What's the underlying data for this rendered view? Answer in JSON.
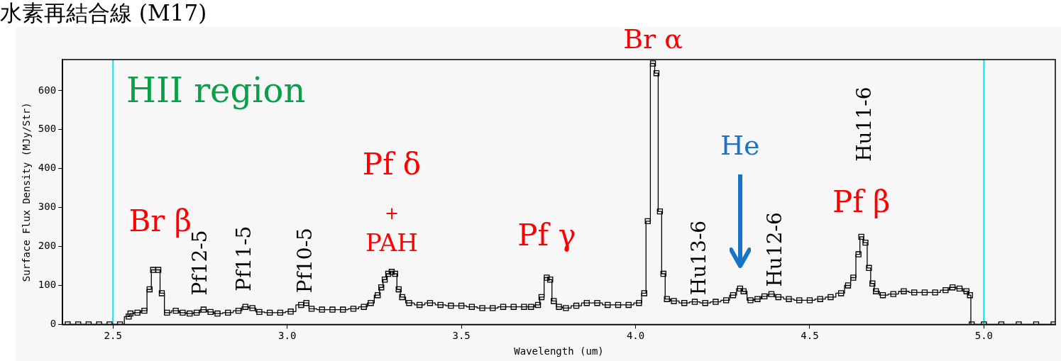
{
  "chart_data": {
    "type": "step",
    "title": "水素再結合線 (M17)",
    "xlabel": "Wavelength (um)",
    "ylabel": "Surface Flux Density (MJy/Str)",
    "xlim": [
      2.355,
      5.205
    ],
    "xticks": [
      2.5,
      {
        "value": 3,
        "label": "3.0"
      },
      3.5,
      {
        "value": 4,
        "label": "4.0"
      },
      4.5,
      {
        "value": 5,
        "label": "5.0"
      }
    ],
    "ylim": [
      0,
      680
    ],
    "yticks": [
      0,
      100,
      200,
      300,
      400,
      500,
      600
    ],
    "grid": false,
    "legend": false,
    "marker": "square",
    "line_style": "solid",
    "ref_lines": [
      {
        "axis": "x",
        "value": 2.5,
        "color": "#00e5ee"
      },
      {
        "axis": "x",
        "value": 5.0,
        "color": "#00e5ee"
      }
    ],
    "annotations": [
      "HII region",
      {
        "text": "Br β",
        "x": 2.615,
        "y": 140
      },
      {
        "text": "Pf12-5",
        "x": 2.76,
        "y": 38
      },
      {
        "text": "Pf11-5",
        "x": 2.88,
        "y": 45
      },
      {
        "text": "Pf10-5",
        "x": 3.055,
        "y": 55
      },
      "Pf δ",
      {
        "text": "+",
        "x": 3.3,
        "y": 135
      },
      {
        "text": "PAH",
        "x": 3.3,
        "y": 135
      },
      {
        "text": "Pf γ",
        "x": 3.745,
        "y": 120
      },
      {
        "text": "Br α",
        "x": 4.05,
        "y": 670
      },
      {
        "text": "Hu13-6",
        "x": 4.2,
        "y": 55
      },
      "He",
      {
        "text": "Hu12-6",
        "x": 4.39,
        "y": 78
      },
      "Hu11-6",
      {
        "text": "Pf β",
        "x": 4.648,
        "y": 225
      }
    ],
    "series": [
      {
        "color": "#000000",
        "x": [
          2.37,
          2.4,
          2.43,
          2.46,
          2.49,
          2.52,
          2.545,
          2.55,
          2.57,
          2.59,
          2.605,
          2.615,
          2.63,
          2.64,
          2.655,
          2.68,
          2.7,
          2.72,
          2.74,
          2.76,
          2.78,
          2.8,
          2.83,
          2.86,
          2.88,
          2.9,
          2.92,
          2.95,
          2.98,
          3.01,
          3.04,
          3.055,
          3.07,
          3.1,
          3.13,
          3.16,
          3.19,
          3.22,
          3.24,
          3.26,
          3.27,
          3.28,
          3.29,
          3.3,
          3.31,
          3.32,
          3.33,
          3.35,
          3.38,
          3.41,
          3.44,
          3.47,
          3.5,
          3.53,
          3.56,
          3.59,
          3.62,
          3.65,
          3.68,
          3.7,
          3.72,
          3.73,
          3.745,
          3.755,
          3.765,
          3.78,
          3.8,
          3.83,
          3.86,
          3.89,
          3.92,
          3.95,
          3.98,
          4.01,
          4.025,
          4.035,
          4.05,
          4.06,
          4.07,
          4.08,
          4.09,
          4.11,
          4.14,
          4.17,
          4.2,
          4.23,
          4.26,
          4.28,
          4.3,
          4.31,
          4.33,
          4.35,
          4.37,
          4.39,
          4.41,
          4.44,
          4.47,
          4.5,
          4.53,
          4.56,
          4.59,
          4.61,
          4.625,
          4.64,
          4.648,
          4.66,
          4.67,
          4.68,
          4.69,
          4.71,
          4.74,
          4.77,
          4.8,
          4.83,
          4.86,
          4.89,
          4.91,
          4.93,
          4.95,
          4.96,
          4.965,
          5.0,
          5.05,
          5.1,
          5.15,
          5.2
        ],
        "values": [
          0,
          0,
          0,
          0,
          0,
          0,
          20,
          28,
          30,
          35,
          90,
          140,
          140,
          80,
          30,
          35,
          30,
          28,
          30,
          38,
          32,
          28,
          30,
          35,
          45,
          42,
          32,
          30,
          30,
          33,
          50,
          55,
          40,
          38,
          38,
          38,
          40,
          45,
          55,
          75,
          95,
          115,
          130,
          135,
          130,
          90,
          70,
          55,
          50,
          55,
          50,
          48,
          48,
          45,
          42,
          42,
          45,
          45,
          45,
          45,
          50,
          70,
          120,
          115,
          60,
          45,
          42,
          48,
          55,
          55,
          50,
          50,
          50,
          55,
          80,
          265,
          670,
          645,
          290,
          130,
          65,
          60,
          55,
          58,
          55,
          58,
          62,
          75,
          92,
          85,
          62,
          65,
          72,
          78,
          70,
          65,
          62,
          62,
          65,
          70,
          80,
          100,
          120,
          180,
          225,
          210,
          145,
          105,
          85,
          75,
          78,
          85,
          82,
          82,
          82,
          88,
          95,
          92,
          85,
          75,
          0,
          0,
          0,
          0,
          0,
          0
        ]
      }
    ]
  }
}
